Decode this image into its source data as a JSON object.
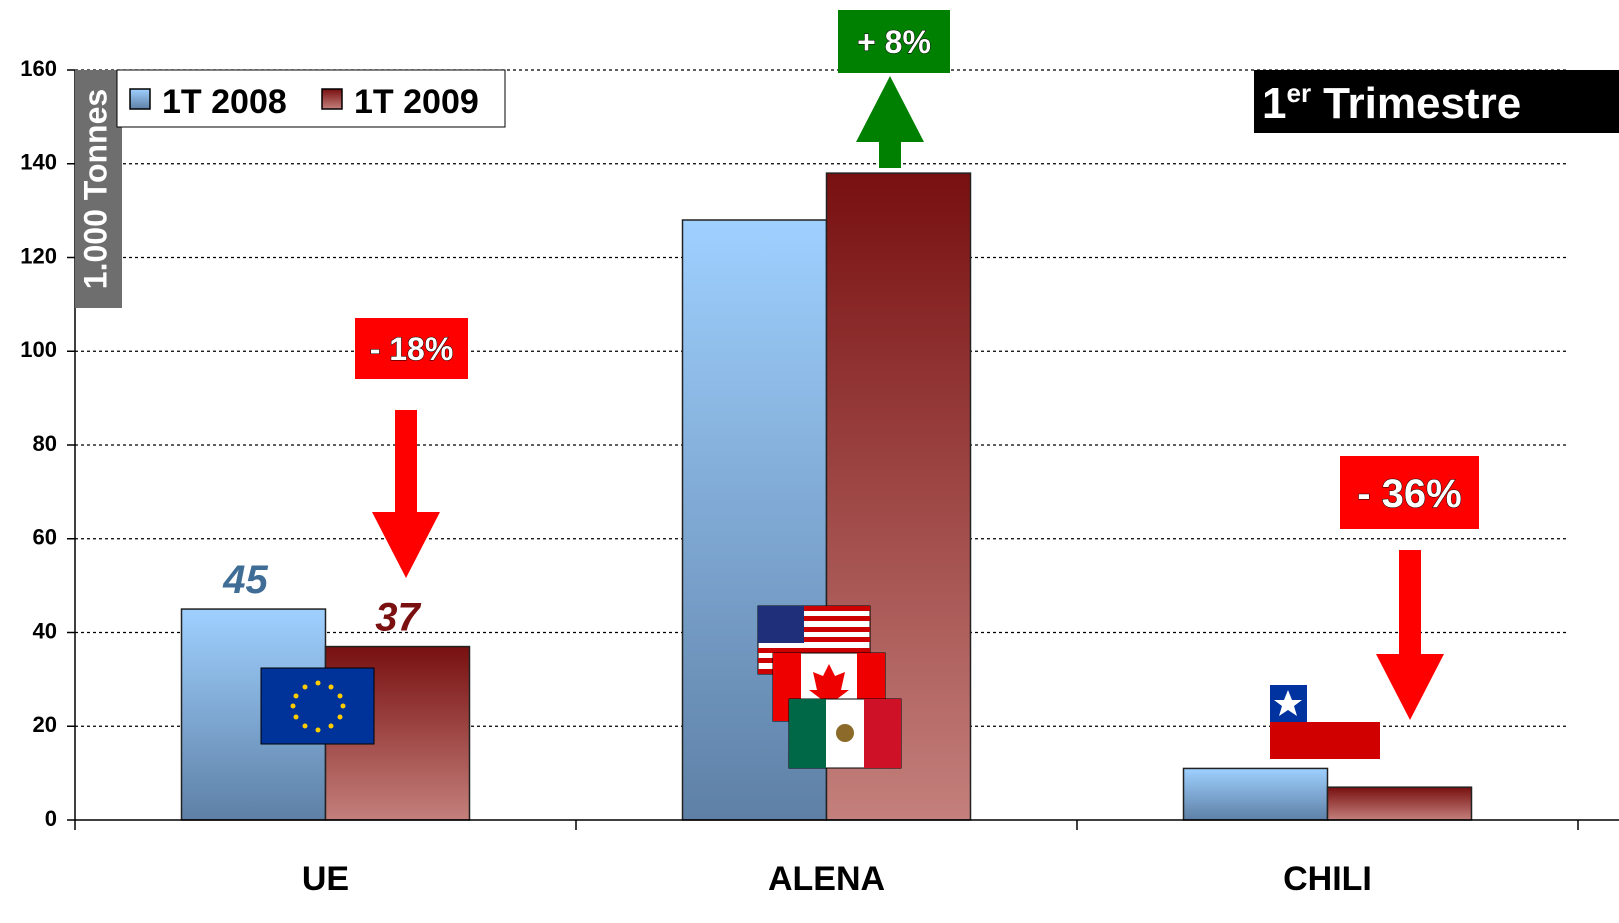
{
  "chart_data": {
    "type": "bar",
    "title": {
      "number": "1",
      "suffix": "er",
      "text": "Trimestre"
    },
    "y_label": "1.000 Tonnes",
    "categories": [
      "UE",
      "ALENA",
      "CHILI"
    ],
    "series": [
      {
        "name": "1T 2008",
        "color": "#7fb0e8",
        "values": [
          45,
          128,
          11
        ]
      },
      {
        "name": "1T 2009",
        "color": "#9a3a3a",
        "values": [
          37,
          138,
          7
        ]
      }
    ],
    "ylim": [
      0,
      160
    ],
    "yticks": [
      0,
      20,
      40,
      60,
      80,
      100,
      120,
      140,
      160
    ],
    "grid": true,
    "legend": "top-left",
    "annotations": [
      {
        "text": "- 18%",
        "color": "#ff0000"
      },
      {
        "text": "+ 8%",
        "color": "#008000"
      },
      {
        "text": "- 36%",
        "color": "#ff0000"
      }
    ]
  }
}
